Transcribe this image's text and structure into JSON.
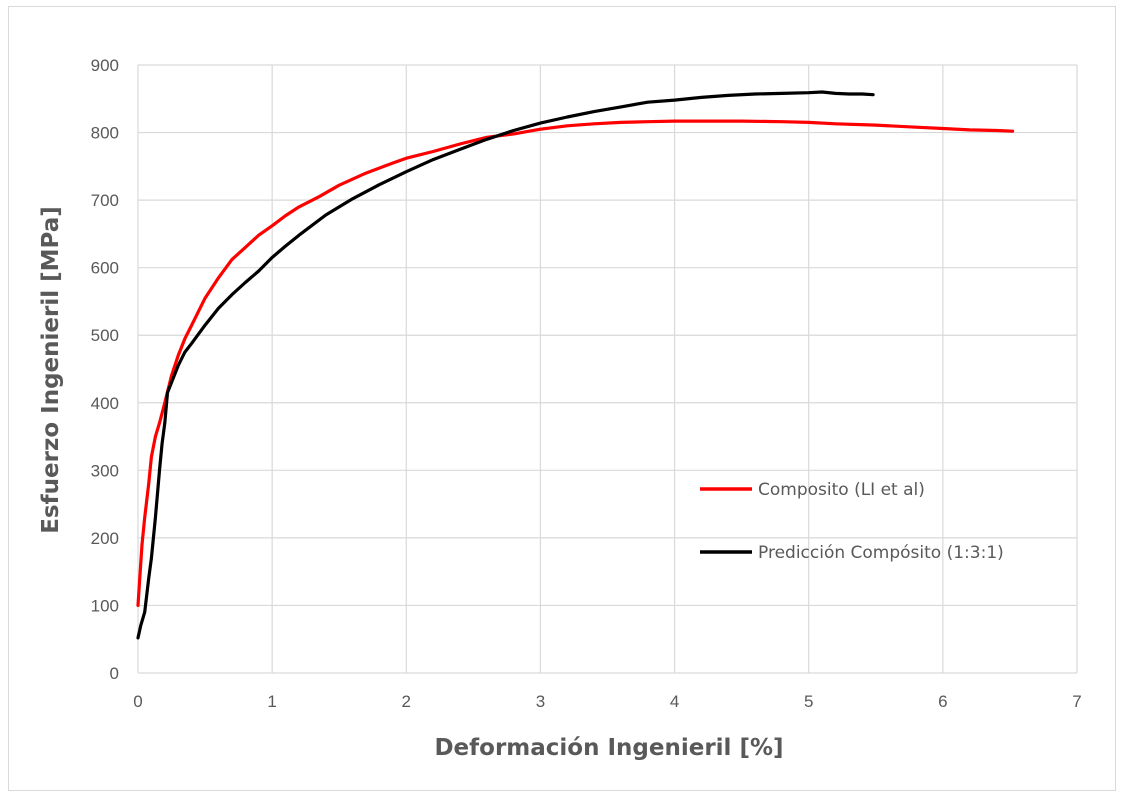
{
  "chart_data": {
    "type": "line",
    "title": "",
    "xlabel": "Deformación Ingenieril [%]",
    "ylabel": "Esfuerzo Ingenieril [MPa]",
    "xlim": [
      0,
      7
    ],
    "ylim": [
      0,
      900
    ],
    "xticks": [
      0,
      1,
      2,
      3,
      4,
      5,
      6,
      7
    ],
    "yticks": [
      0,
      100,
      200,
      300,
      400,
      500,
      600,
      700,
      800,
      900
    ],
    "grid": true,
    "legend_position": "right-middle",
    "series": [
      {
        "name": "Composito (LI et al)",
        "color": "#ff0000",
        "x": [
          0,
          0.01,
          0.03,
          0.05,
          0.08,
          0.1,
          0.13,
          0.16,
          0.2,
          0.25,
          0.3,
          0.35,
          0.4,
          0.5,
          0.6,
          0.7,
          0.8,
          0.9,
          1.0,
          1.1,
          1.2,
          1.35,
          1.5,
          1.7,
          1.9,
          2.0,
          2.2,
          2.4,
          2.6,
          2.8,
          3.0,
          3.2,
          3.4,
          3.6,
          3.8,
          4.0,
          4.2,
          4.5,
          4.8,
          5.0,
          5.2,
          5.5,
          5.8,
          6.0,
          6.2,
          6.4,
          6.52
        ],
        "y": [
          100,
          130,
          190,
          230,
          280,
          320,
          350,
          370,
          400,
          440,
          470,
          495,
          515,
          555,
          585,
          612,
          630,
          648,
          662,
          677,
          690,
          705,
          722,
          740,
          755,
          762,
          772,
          783,
          793,
          798,
          805,
          810,
          813,
          815,
          816,
          817,
          817,
          817,
          816,
          815,
          813,
          811,
          808,
          806,
          804,
          803,
          802
        ]
      },
      {
        "name": "Predicción Compósito (1:3:1)",
        "color": "#000000",
        "x": [
          0,
          0.02,
          0.05,
          0.08,
          0.1,
          0.13,
          0.16,
          0.18,
          0.2,
          0.22,
          0.25,
          0.3,
          0.35,
          0.4,
          0.5,
          0.6,
          0.7,
          0.8,
          0.9,
          1.0,
          1.1,
          1.2,
          1.4,
          1.6,
          1.8,
          2.0,
          2.2,
          2.4,
          2.6,
          2.8,
          3.0,
          3.2,
          3.4,
          3.6,
          3.8,
          4.0,
          4.2,
          4.4,
          4.6,
          4.8,
          5.0,
          5.1,
          5.2,
          5.3,
          5.4,
          5.48
        ],
        "y": [
          52,
          70,
          90,
          140,
          170,
          230,
          300,
          340,
          370,
          415,
          430,
          455,
          475,
          488,
          515,
          540,
          560,
          578,
          595,
          615,
          632,
          648,
          678,
          702,
          723,
          742,
          760,
          775,
          790,
          803,
          814,
          823,
          831,
          838,
          845,
          848,
          852,
          855,
          857,
          858,
          859,
          860,
          858,
          857,
          857,
          856
        ]
      }
    ]
  }
}
